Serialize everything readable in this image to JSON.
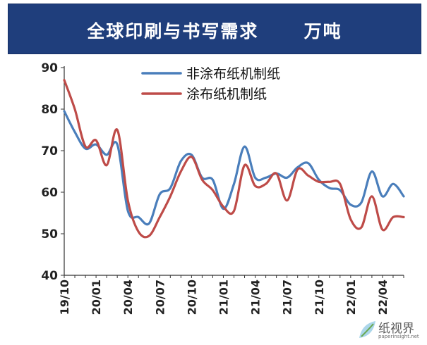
{
  "header": {
    "title": "全球印刷与书写需求",
    "unit": "万吨",
    "background": "#1f3e7c"
  },
  "watermark": {
    "logo": "纸视界",
    "url": "paperinsight.net"
  },
  "chart_data": {
    "type": "line",
    "title": "全球印刷与书写需求 万吨",
    "ylim": [
      40,
      90
    ],
    "yticks": [
      "40",
      "50",
      "60",
      "70",
      "80",
      "90"
    ],
    "xticks": [
      "19/10",
      "20/01",
      "20/04",
      "20/07",
      "20/10",
      "21/01",
      "21/04",
      "21/07",
      "21/10",
      "22/01",
      "22/04"
    ],
    "legend_position": "top-center",
    "grid": false,
    "x": [
      "19/10",
      "19/11",
      "19/12",
      "20/01",
      "20/02",
      "20/03",
      "20/04",
      "20/05",
      "20/06",
      "20/07",
      "20/08",
      "20/09",
      "20/10",
      "20/11",
      "20/12",
      "21/01",
      "21/02",
      "21/03",
      "21/04",
      "21/05",
      "21/06",
      "21/07",
      "21/08",
      "21/09",
      "21/10",
      "21/11",
      "21/12",
      "22/01",
      "22/02",
      "22/03",
      "22/04",
      "22/05",
      "22/06"
    ],
    "series": [
      {
        "name": "非涂布纸机制纸",
        "color": "#4a7ebb",
        "values": [
          79.5,
          74.5,
          70.5,
          71.5,
          69.0,
          71.5,
          55.5,
          54.0,
          52.5,
          59.5,
          61.0,
          67.5,
          69.0,
          63.5,
          63.0,
          56.0,
          62.0,
          71.0,
          63.5,
          63.5,
          64.5,
          63.5,
          66.0,
          67.0,
          63.0,
          61.0,
          60.5,
          57.0,
          57.5,
          65.0,
          59.0,
          62.0,
          59.0
        ]
      },
      {
        "name": "涂布纸机制纸",
        "color": "#be4b48",
        "values": [
          87.0,
          80.0,
          71.0,
          72.5,
          66.5,
          75.0,
          58.0,
          50.5,
          49.5,
          54.0,
          59.0,
          65.0,
          68.5,
          63.0,
          60.5,
          56.5,
          55.5,
          66.5,
          61.5,
          62.0,
          64.5,
          58.0,
          65.5,
          64.0,
          62.5,
          62.5,
          62.0,
          53.5,
          51.5,
          59.0,
          51.0,
          54.0,
          54.0
        ]
      }
    ]
  }
}
